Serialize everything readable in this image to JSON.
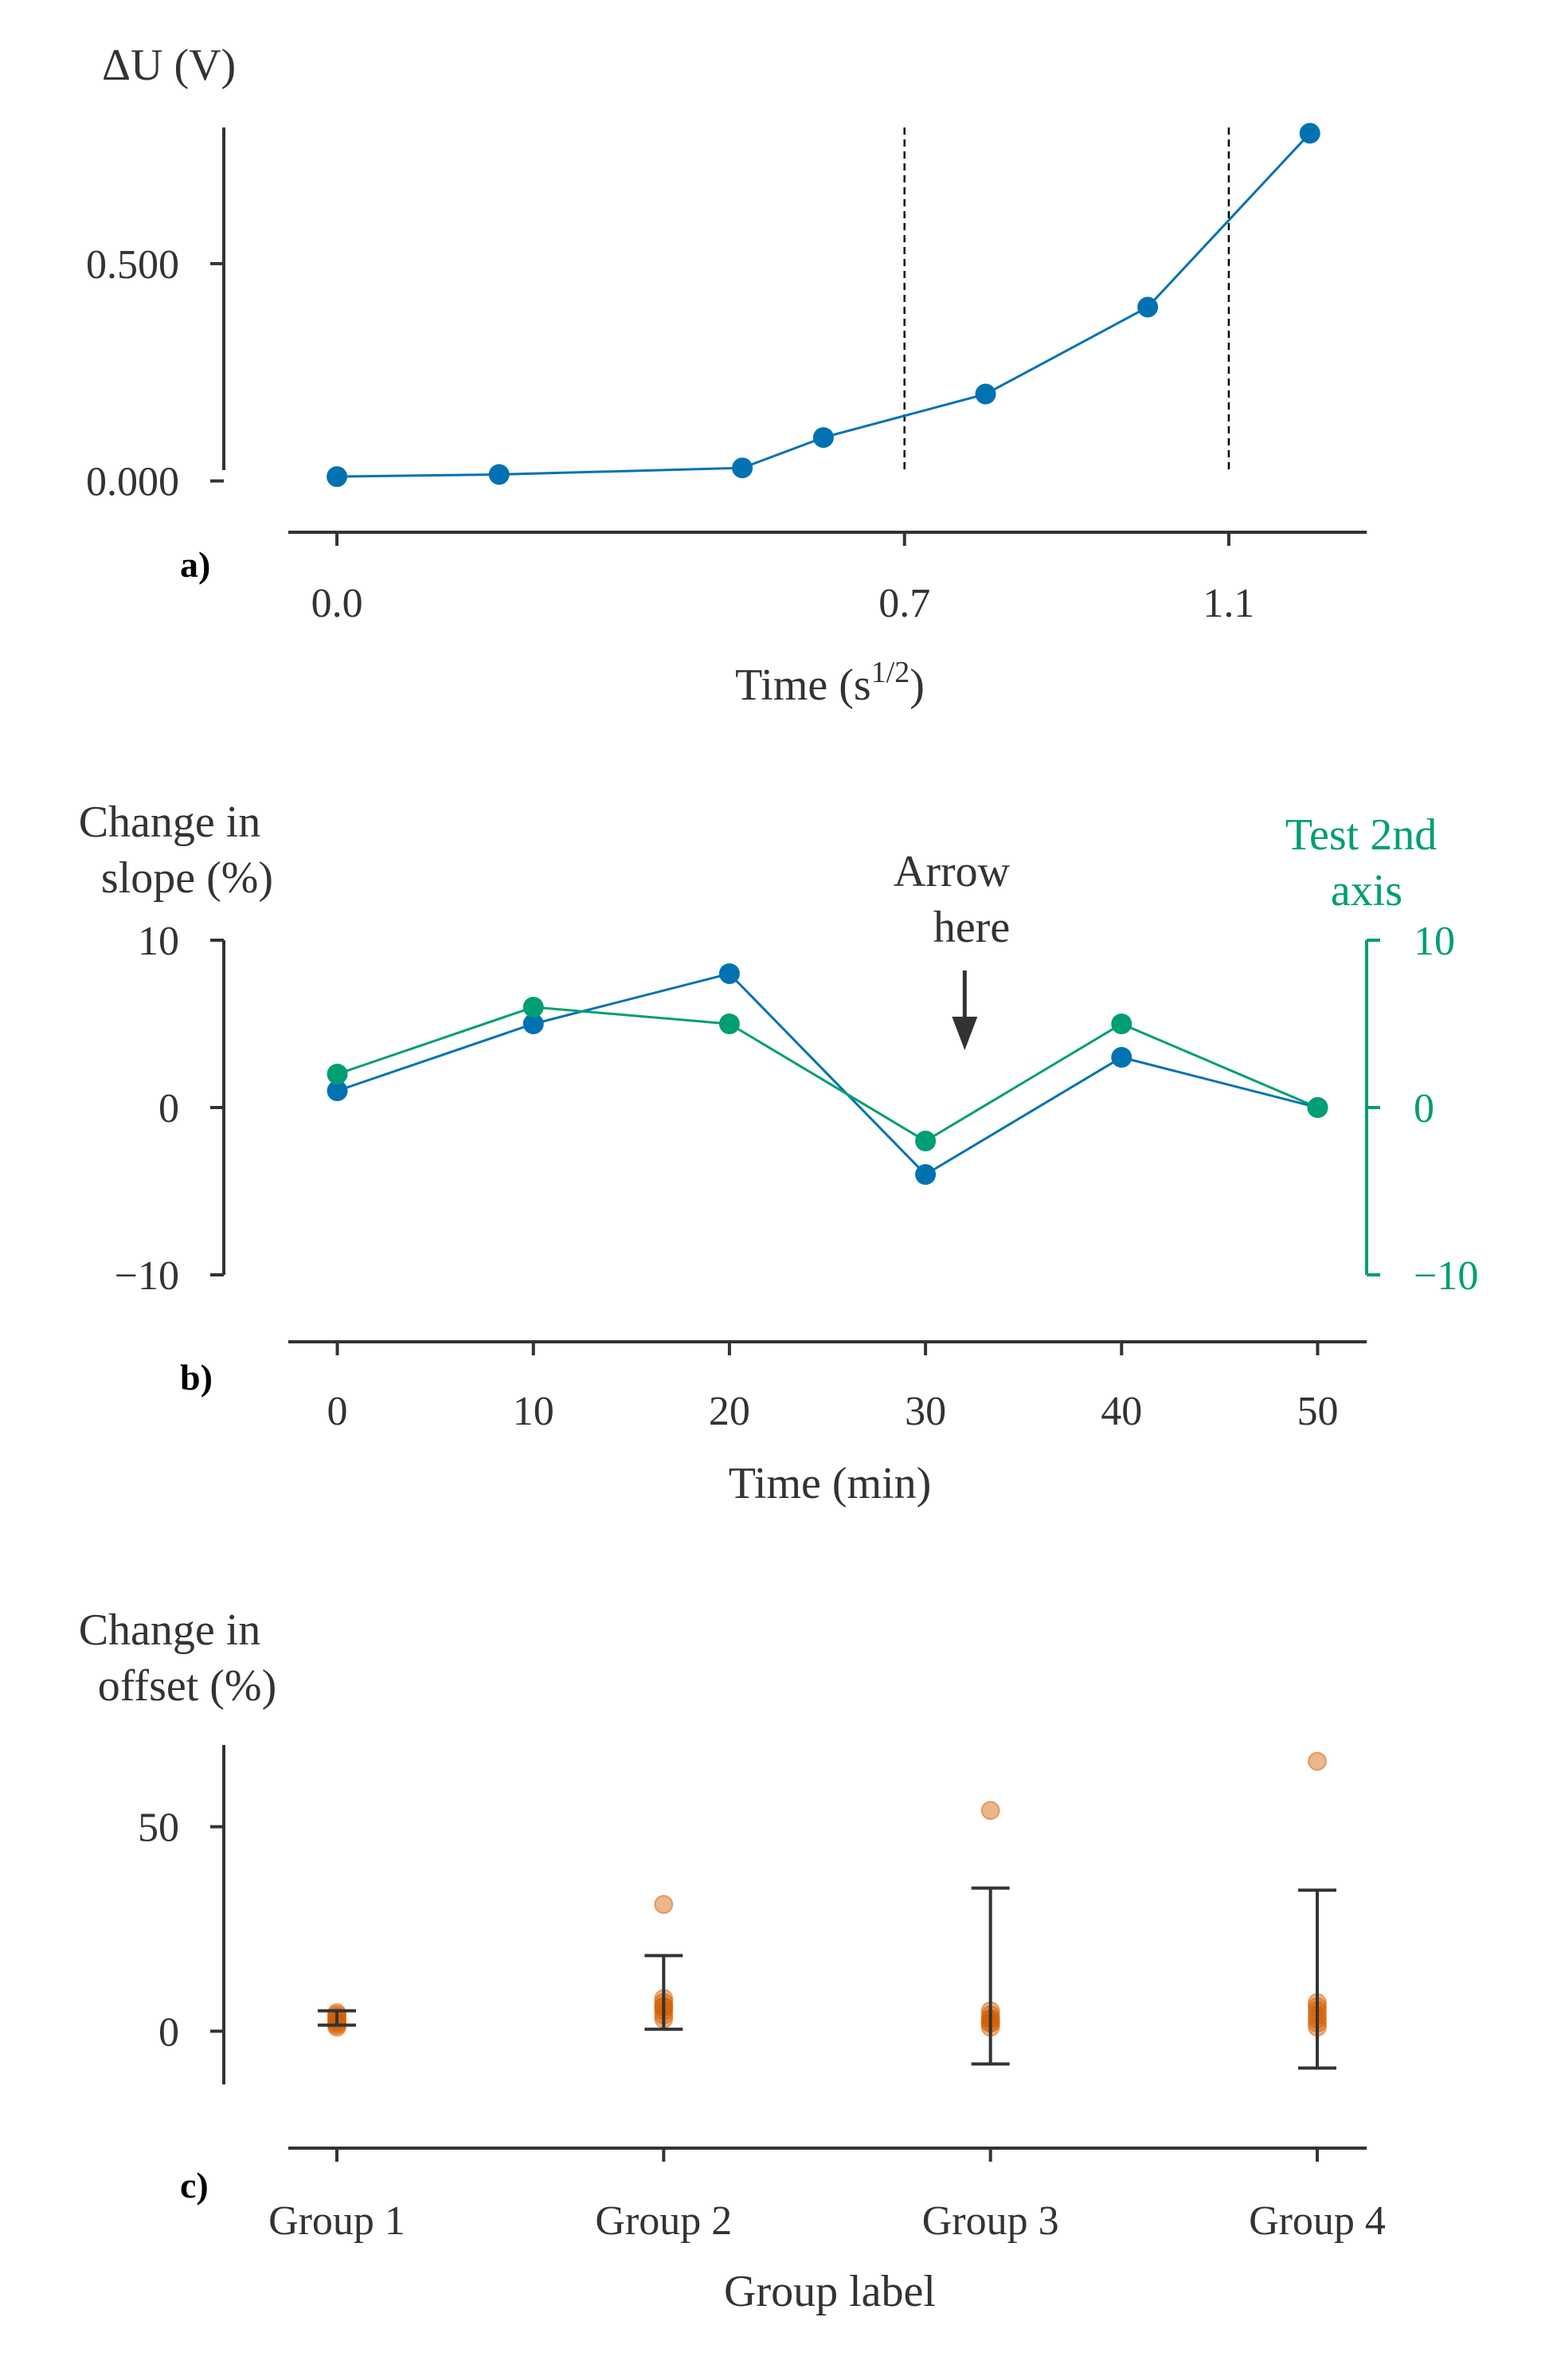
{
  "chart_data": [
    {
      "type": "line",
      "panel_tag": "a)",
      "xlabel_main": "Time (s",
      "xlabel_sup": "1/2",
      "xlabel_end": ")",
      "ylabel": "ΔU (V)",
      "x_ticks": [
        0.0,
        0.7,
        1.1
      ],
      "x_tick_labels": [
        "0.0",
        "0.7",
        "1.1"
      ],
      "y_ticks": [
        0.0,
        0.5
      ],
      "y_tick_labels": [
        "0.000",
        "0.500"
      ],
      "xlim": [
        -0.06,
        1.27
      ],
      "ylim": [
        -0.03,
        0.85
      ],
      "vlines": [
        0.7,
        1.1
      ],
      "series": [
        {
          "color": "#0072b2",
          "x": [
            0.0,
            0.2,
            0.5,
            0.6,
            0.8,
            1.0,
            1.2
          ],
          "y": [
            0.01,
            0.015,
            0.03,
            0.1,
            0.2,
            0.4,
            0.8
          ]
        }
      ],
      "grid": false
    },
    {
      "type": "line",
      "panel_tag": "b)",
      "xlabel": "Time (min)",
      "ylabel_lines": [
        "Change in",
        "slope (%)"
      ],
      "ylabel2_lines": [
        "Test 2nd",
        "axis"
      ],
      "annotation_lines": [
        "Arrow",
        "here"
      ],
      "annotation_arrow_x": 32,
      "x_ticks": [
        0,
        10,
        20,
        30,
        40,
        50
      ],
      "x_tick_labels": [
        "0",
        "10",
        "20",
        "30",
        "40",
        "50"
      ],
      "y_ticks": [
        -10,
        0,
        10
      ],
      "y_tick_labels": [
        "−10",
        "0",
        "10"
      ],
      "y2_ticks": [
        -10,
        0,
        10
      ],
      "y2_tick_labels": [
        "−10",
        "0",
        "10"
      ],
      "xlim": [
        -2.5,
        52.5
      ],
      "ylim": [
        -10,
        10
      ],
      "y2lim": [
        -10,
        10
      ],
      "series": [
        {
          "color": "#0072b2",
          "axis": "left",
          "x": [
            0,
            10,
            20,
            30,
            40,
            50
          ],
          "y": [
            1,
            5,
            8,
            -4,
            3,
            0
          ]
        },
        {
          "color": "#009e73",
          "axis": "right",
          "x": [
            0,
            10,
            20,
            30,
            40,
            50
          ],
          "y": [
            2,
            6,
            5,
            -2,
            5,
            0
          ]
        }
      ],
      "grid": false
    },
    {
      "type": "scatter",
      "panel_tag": "c)",
      "xlabel": "Group label",
      "ylabel_lines": [
        "Change in",
        "offset (%)"
      ],
      "categories": [
        "Group 1",
        "Group 2",
        "Group 3",
        "Group 4"
      ],
      "y_ticks": [
        0,
        50
      ],
      "y_tick_labels": [
        "0",
        "50"
      ],
      "ylim": [
        -13,
        70
      ],
      "point_color": "#d55e00",
      "points": [
        [
          1.5,
          2.5,
          3.5,
          4.5,
          2.0,
          3.0,
          1.0,
          4.0
        ],
        [
          31,
          8,
          6,
          5,
          7,
          4,
          6,
          3
        ],
        [
          54,
          5,
          3,
          2,
          1,
          4,
          2,
          3
        ],
        [
          66,
          7,
          5,
          3,
          2,
          4,
          1,
          6
        ]
      ],
      "error_bars": [
        {
          "low": 1.5,
          "high": 5.0
        },
        {
          "low": 0.5,
          "high": 18.5
        },
        {
          "low": -8.0,
          "high": 35.0
        },
        {
          "low": -9.0,
          "high": 34.5
        }
      ],
      "grid": false
    }
  ]
}
